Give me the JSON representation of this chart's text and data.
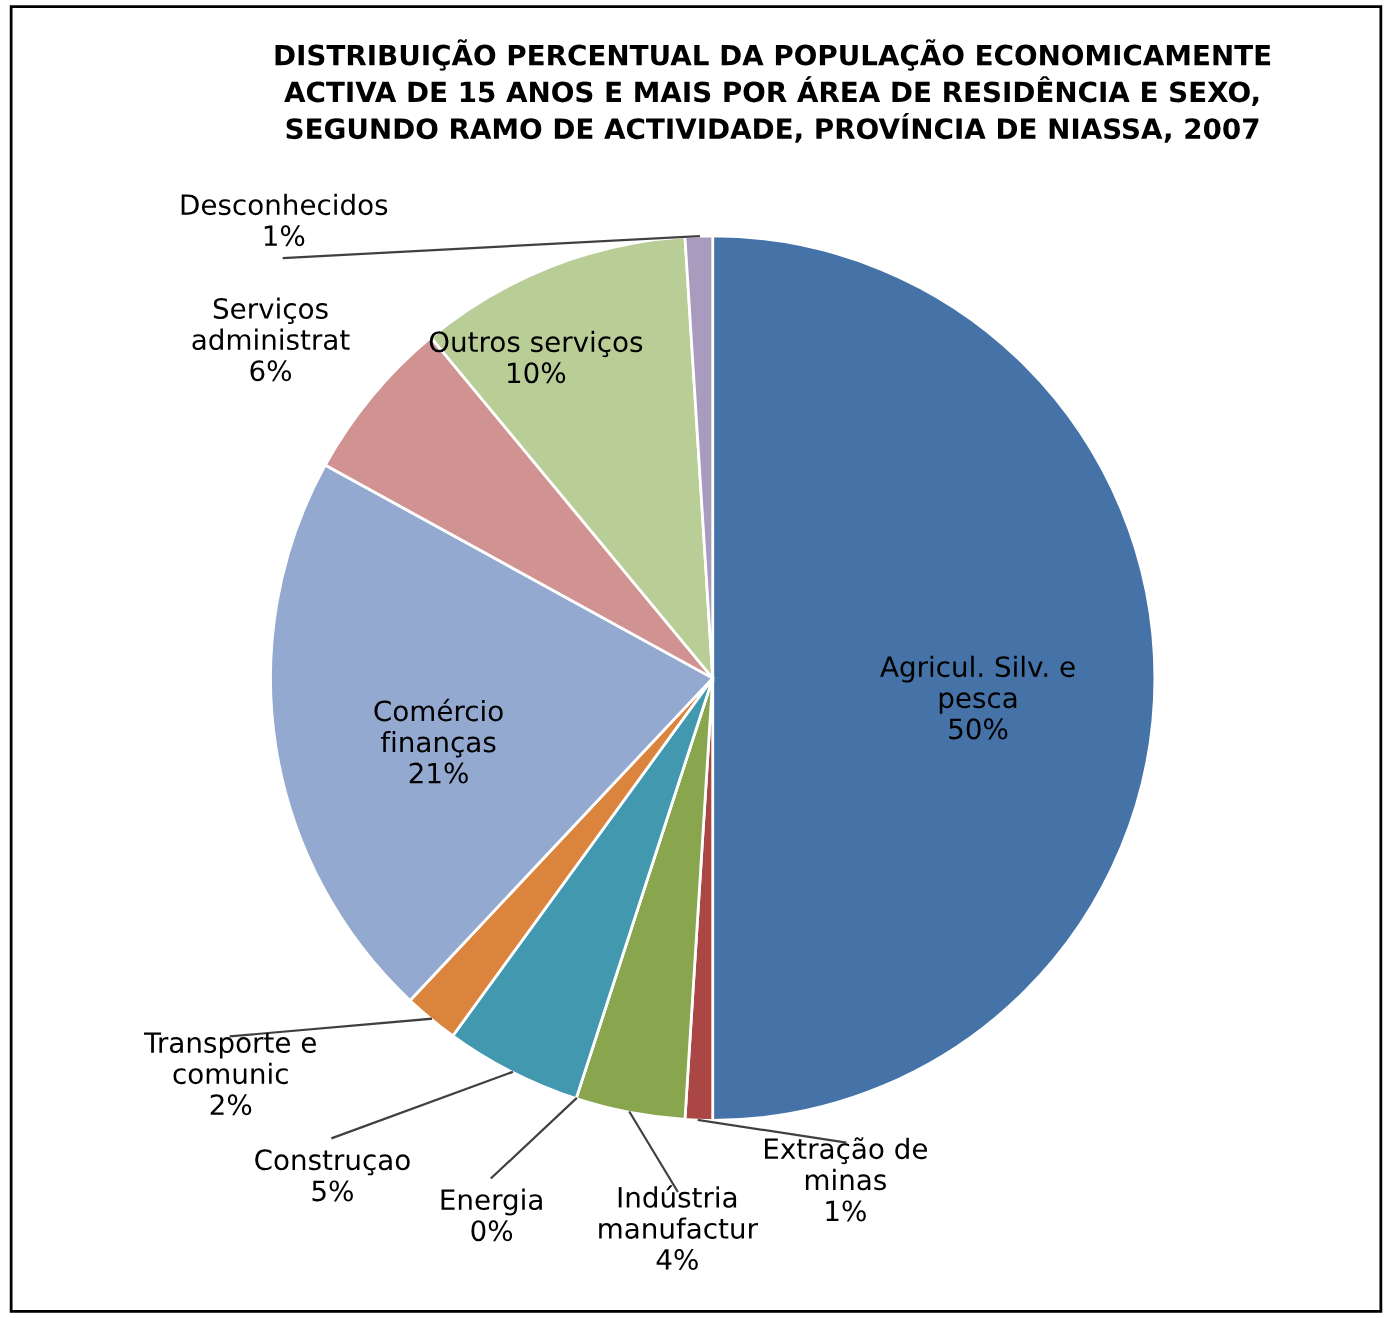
{
  "chart_data": {
    "type": "pie",
    "title": "DISTRIBUIÇÃO PERCENTUAL DA POPULAÇÃO ECONOMICAMENTE\nACTIVA DE 15 ANOS E MAIS POR ÁREA DE RESIDÊNCIA E SEXO,\nSEGUNDO RAMO DE ACTIVIDADE, PROVÍNCIA DE NIASSA, 2007",
    "categories": [
      "Agricul. Silv. e\npesca",
      "Extração de\nminas",
      "Indústria\nmanufactur",
      "Energia",
      "Construçao",
      "Transporte e\ncomunic",
      "Comércio\nfinanças",
      "Serviços\nadministrat",
      "Outros serviços",
      "Desconhecidos"
    ],
    "values": [
      50,
      1,
      4,
      0,
      5,
      2,
      21,
      6,
      10,
      1
    ],
    "value_labels": [
      "50%",
      "1%",
      "4%",
      "0%",
      "5%",
      "2%",
      "21%",
      "6%",
      "10%",
      "1%"
    ],
    "colors": [
      "#4572a7",
      "#aa4643",
      "#89a54e",
      "#71588f",
      "#4198af",
      "#db843d",
      "#93a9cf",
      "#d19392",
      "#b9cd96",
      "#a99bbd"
    ],
    "legend": false
  }
}
